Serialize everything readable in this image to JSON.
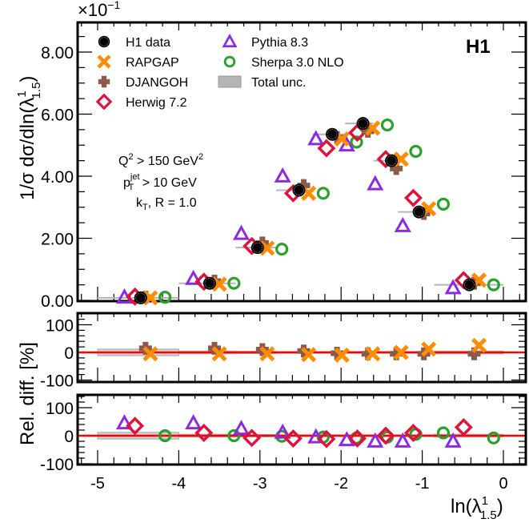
{
  "chart_data": {
    "type": "scatter",
    "experiment_label": "H1",
    "scale_label": "×10",
    "scale_exponent": "−1",
    "ylabel_main": "1/σ dσ/dln(λ",
    "ylabel_main_sup": "1",
    "ylabel_main_sub": "1.5",
    "ylabel_main_close": ")",
    "ylabel_ratio": "Rel. diff. [%]",
    "xlabel": "ln(λ",
    "xlabel_sup": "1",
    "xlabel_sub": "1.5",
    "xlabel_close": ")",
    "xlim": [
      -5.25,
      0.25
    ],
    "ylim_main": [
      0,
      9
    ],
    "ylim_ratio": [
      -110,
      150
    ],
    "x_ticks": [
      "-5",
      "-4",
      "-3",
      "-2",
      "-1",
      "0"
    ],
    "x_tick_values": [
      -5,
      -4,
      -3,
      -2,
      -1,
      0
    ],
    "y_ticks_main": [
      "0.00",
      "2.00",
      "4.00",
      "6.00",
      "8.00"
    ],
    "y_tick_values_main": [
      0,
      2,
      4,
      6,
      8
    ],
    "y_ticks_ratio": [
      "-100",
      "0",
      "100"
    ],
    "y_tick_values_ratio": [
      -100,
      0,
      100
    ],
    "annotation": {
      "line1": "Q",
      "line1_sup": "2",
      "line1_rest": " > 150 GeV",
      "line1_sup2": "2",
      "line2": "p",
      "line2_sup": "jet",
      "line2_sub": "T",
      "line2_rest": " > 10 GeV",
      "line3": "k",
      "line3_sub": "T",
      "line3_rest": ", R = 1.0"
    },
    "legend": [
      {
        "label": "H1 data",
        "marker": "filled-circle",
        "color": "#000000"
      },
      {
        "label": "RAPGAP",
        "marker": "cross-x",
        "color": "#ff8c00"
      },
      {
        "label": "DJANGOH",
        "marker": "cross-plus",
        "color": "#8b5a4a"
      },
      {
        "label": "Herwig 7.2",
        "marker": "open-diamond",
        "color": "#dc143c"
      },
      {
        "label": "Pythia 8.3",
        "marker": "open-triangle",
        "color": "#8a2be2"
      },
      {
        "label": "Sherpa 3.0 NLO",
        "marker": "open-circle",
        "color": "#2ca02c"
      },
      {
        "label": "Total unc.",
        "marker": "box",
        "color": "#b0b0b0"
      }
    ],
    "bins": [
      {
        "lo": -5.0,
        "hi": -4.0,
        "x": -4.47
      },
      {
        "lo": -4.0,
        "hi": -3.3,
        "x": -3.62
      },
      {
        "lo": -3.3,
        "hi": -2.8,
        "x": -3.03
      },
      {
        "lo": -2.8,
        "hi": -2.35,
        "x": -2.52
      },
      {
        "lo": -2.35,
        "hi": -1.95,
        "x": -2.11
      },
      {
        "lo": -1.95,
        "hi": -1.6,
        "x": -1.73
      },
      {
        "lo": -1.6,
        "hi": -1.3,
        "x": -1.38
      },
      {
        "lo": -1.3,
        "hi": -0.85,
        "x": -1.04
      },
      {
        "lo": -0.85,
        "hi": 0.0,
        "x": -0.42
      }
    ],
    "series": [
      {
        "name": "H1 data",
        "marker": "filled-circle",
        "color": "#000000",
        "dx": 0.0,
        "values": [
          0.08,
          0.55,
          1.7,
          3.55,
          5.35,
          5.7,
          4.5,
          2.85,
          0.5
        ],
        "uncertainty_pct": [
          12,
          5,
          4,
          3,
          3,
          3,
          3,
          3,
          5
        ]
      },
      {
        "name": "RAPGAP",
        "marker": "cross-x",
        "color": "#ff8c00",
        "dx": 0.12,
        "values": [
          0.08,
          0.52,
          1.68,
          3.45,
          5.2,
          5.55,
          4.55,
          2.95,
          0.65
        ],
        "ratio": [
          -5,
          -5,
          -5,
          -8,
          -10,
          -5,
          0,
          12,
          25
        ]
      },
      {
        "name": "DJANGOH",
        "marker": "cross-plus",
        "color": "#8b5a4a",
        "dx": 0.06,
        "values": [
          0.1,
          0.62,
          1.85,
          3.7,
          5.25,
          5.45,
          4.25,
          2.8,
          0.55
        ],
        "ratio": [
          15,
          15,
          10,
          5,
          -3,
          -5,
          -5,
          -5,
          -5
        ]
      },
      {
        "name": "Herwig 7.2",
        "marker": "open-diamond",
        "color": "#dc143c",
        "dx": -0.07,
        "values": [
          0.12,
          0.6,
          1.75,
          3.45,
          4.9,
          5.4,
          4.55,
          3.3,
          0.65
        ],
        "ratio": [
          35,
          10,
          -8,
          -10,
          -12,
          -10,
          0,
          10,
          30
        ]
      },
      {
        "name": "Pythia 8.3",
        "marker": "open-triangle",
        "color": "#8a2be2",
        "dx": -0.2,
        "values": [
          0.1,
          0.7,
          2.15,
          4.0,
          5.2,
          5.0,
          3.75,
          2.4,
          0.4
        ],
        "ratio": [
          45,
          45,
          25,
          12,
          -5,
          -15,
          -20,
          -20,
          -20
        ]
      },
      {
        "name": "Sherpa 3.0 NLO",
        "marker": "open-circle",
        "color": "#2ca02c",
        "dx": 0.3,
        "values": [
          0.1,
          0.55,
          1.65,
          3.45,
          5.1,
          5.65,
          4.8,
          3.1,
          0.5
        ],
        "ratio": [
          0,
          0,
          -2,
          -5,
          -8,
          -5,
          5,
          10,
          -8
        ]
      }
    ]
  }
}
